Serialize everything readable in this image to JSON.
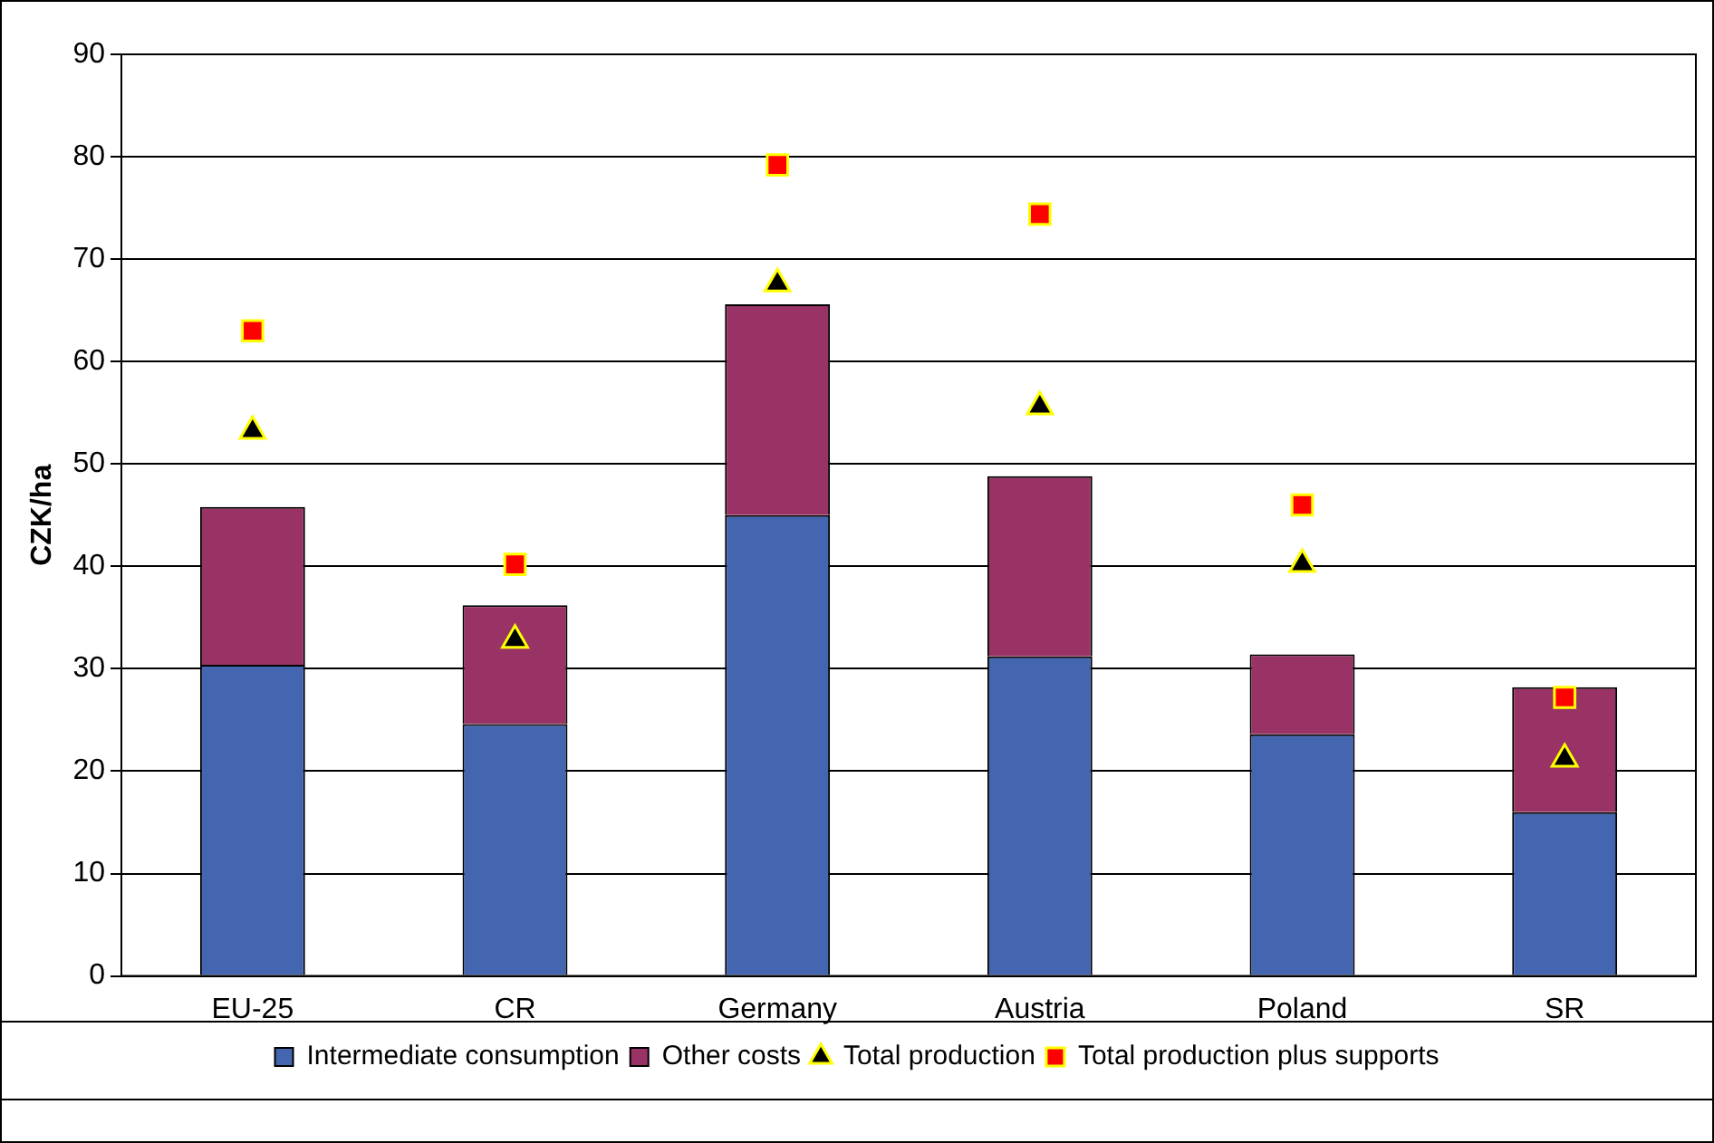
{
  "chart_data": {
    "type": "bar",
    "stacked": true,
    "ylabel": "CZK/ha",
    "categories": [
      "EU-25",
      "CR",
      "Germany",
      "Austria",
      "Poland",
      "SR"
    ],
    "ylim": [
      0,
      90
    ],
    "yticks": [
      0,
      10,
      20,
      30,
      40,
      50,
      60,
      70,
      80,
      90
    ],
    "grid": "y",
    "legend": "bottom",
    "series": [
      {
        "name": "Intermediate consumption",
        "color": "#4466b0",
        "values": [
          30.4,
          24.6,
          45,
          31.2,
          23.6,
          16
        ]
      },
      {
        "name": "Other costs",
        "color": "#993366",
        "values": [
          15.4,
          11.6,
          20.6,
          17.6,
          7.8,
          12.2
        ]
      },
      {
        "name": "Total production",
        "type": "scatter",
        "marker": "triangle",
        "color": "#000000",
        "x": [
          "EU-25",
          "CR",
          "Germany",
          "Austria",
          "Poland",
          "SR"
        ],
        "values": [
          53.2,
          32.8,
          67.6,
          55.6,
          40.2,
          21.2
        ]
      },
      {
        "name": "Total production plus supports",
        "type": "scatter",
        "marker": "square",
        "color": "#ff0000",
        "x": [
          "EU-25",
          "CR",
          "Germany",
          "Austria",
          "Poland",
          "SR"
        ],
        "values": [
          63,
          40.2,
          79.2,
          74.4,
          46,
          27.2
        ]
      }
    ]
  }
}
